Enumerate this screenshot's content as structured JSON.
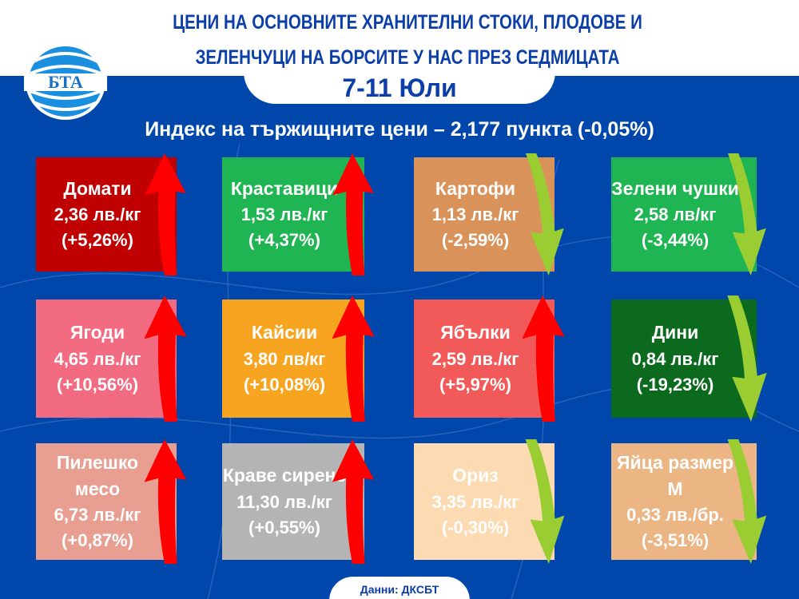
{
  "header": {
    "title_line1": "ЦЕНИ НА ОСНОВНИТЕ ХРАНИТЕЛНИ СТОКИ, ПЛОДОВЕ И",
    "title_line2": "ЗЕЛЕНЧУЦИ НА БОРСИТЕ У НАС ПРЕЗ СЕДМИЦАТА",
    "date": "7-11 Юли",
    "logo_text": "БТА"
  },
  "index_text": "Индекс на тържищните цени – 2,177 пункта (-0,05%)",
  "colors": {
    "background": "#0047ab",
    "title": "#0b3ea8",
    "up_arrow": "#ff0000",
    "down_arrow": "#9acd32"
  },
  "cards": [
    {
      "name": "Домати",
      "price": "2,36 лв./кг",
      "change": "(+5,26%)",
      "direction": "up",
      "color": "#c00000"
    },
    {
      "name": "Краставици",
      "price": "1,53 лв./кг",
      "change": "(+4,37%)",
      "direction": "up",
      "color": "#1fb552"
    },
    {
      "name": "Картофи",
      "price": "1,13 лв./кг",
      "change": "(-2,59%)",
      "direction": "down",
      "color": "#d9935a"
    },
    {
      "name": "Зелени чушки",
      "price": "2,58 лв/кг",
      "change": "(-3,44%)",
      "direction": "down",
      "color": "#1fb552"
    },
    {
      "name": "Ягоди",
      "price": "4,65 лв./кг",
      "change": "(+10,56%)",
      "direction": "up",
      "color": "#f26b80"
    },
    {
      "name": "Кайсии",
      "price": "3,80 лв/кг",
      "change": "(+10,08%)",
      "direction": "up",
      "color": "#f7a520"
    },
    {
      "name": "Ябълки",
      "price": "2,59 лв./кг",
      "change": "(+5,97%)",
      "direction": "up",
      "color": "#f25a5a"
    },
    {
      "name": "Дини",
      "price": "0,84 лв./кг",
      "change": "(-19,23%)",
      "direction": "down",
      "color": "#0b6a1e"
    },
    {
      "name": "Пилешко месо",
      "price": "6,73 лв./кг",
      "change": "(+0,87%)",
      "direction": "up",
      "color": "#e89e90"
    },
    {
      "name": "Краве сирене",
      "price": "11,30 лв./кг",
      "change": "(+0,55%)",
      "direction": "up",
      "color": "#b4b4b4"
    },
    {
      "name": "Ориз",
      "price": "3,35 лв./кг",
      "change": "(-0,30%)",
      "direction": "down",
      "color": "#fcdab2"
    },
    {
      "name": "Яйца размер М",
      "price": "0,33 лв./бр.",
      "change": "(-3,51%)",
      "direction": "down",
      "color": "#ebb584"
    }
  ],
  "footer": "Данни: ДКСБТ"
}
